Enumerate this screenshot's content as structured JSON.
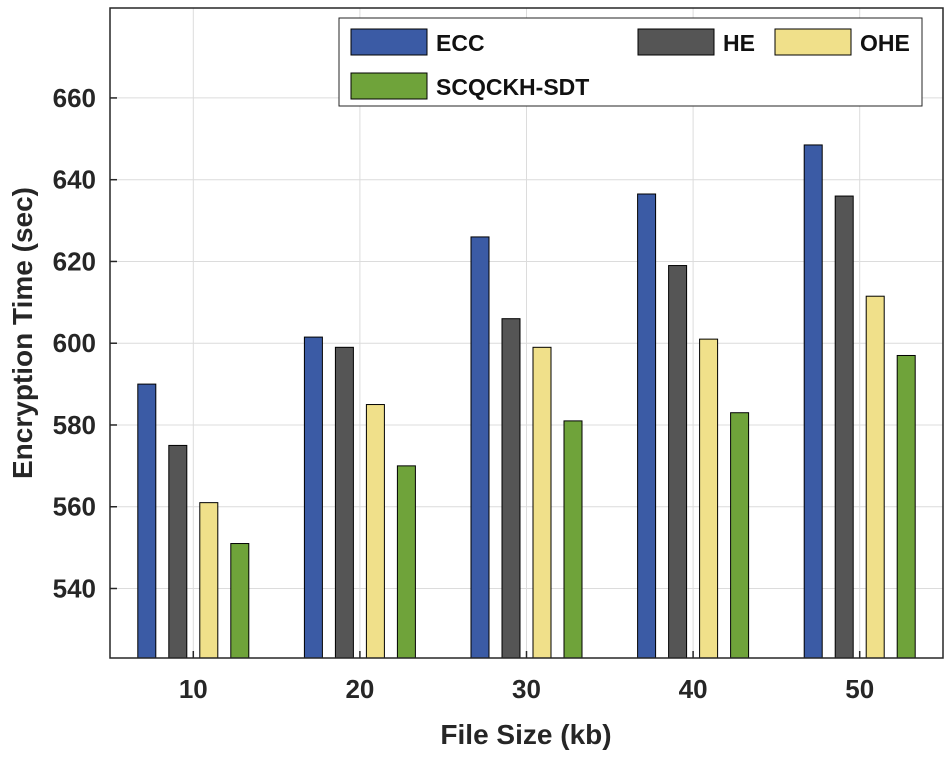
{
  "chart_data": {
    "type": "bar",
    "title": "",
    "xlabel": "File Size (kb)",
    "ylabel": "Encryption Time (sec)",
    "categories": [
      "10",
      "20",
      "30",
      "40",
      "50"
    ],
    "series": [
      {
        "name": "ECC",
        "color": "#3b5ba5",
        "values": [
          590,
          601.5,
          626,
          636.5,
          648.5
        ]
      },
      {
        "name": "HE",
        "color": "#555555",
        "values": [
          575,
          599,
          606,
          619,
          636
        ]
      },
      {
        "name": "OHE",
        "color": "#f0e08a",
        "values": [
          561,
          585,
          599,
          601,
          611.5
        ]
      },
      {
        "name": "SCQCKH-SDT",
        "color": "#6fa33a",
        "values": [
          551,
          570,
          581,
          583,
          597
        ]
      }
    ],
    "ylim": [
      523,
      682
    ],
    "yticks": [
      "540",
      "560",
      "580",
      "600",
      "620",
      "640",
      "660"
    ],
    "grid": true,
    "legend_position": "top-right"
  }
}
